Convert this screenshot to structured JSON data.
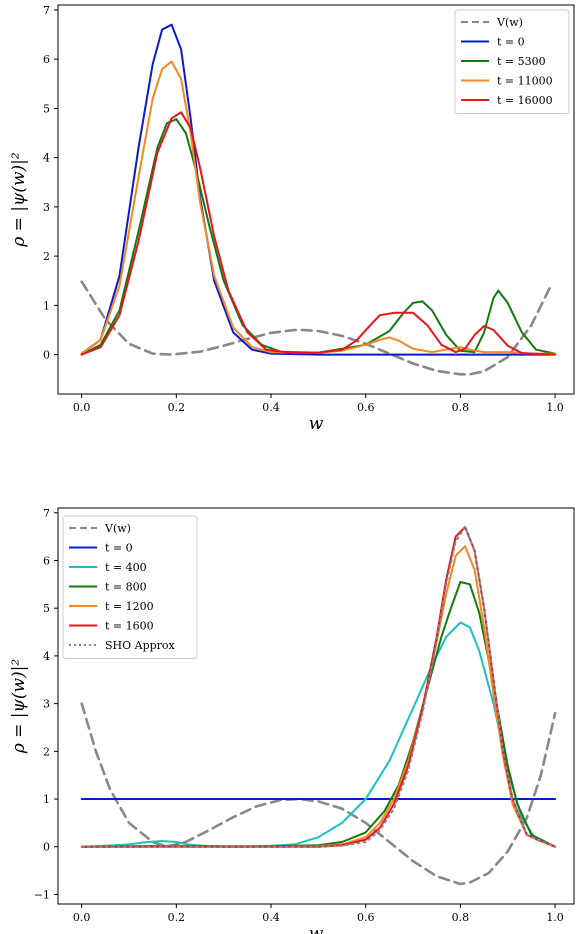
{
  "chart_data": [
    {
      "type": "line",
      "xlabel": "w",
      "ylabel": "ρ = |ψ(w)|²",
      "xlim": [
        -0.05,
        1.04
      ],
      "ylim": [
        -0.8,
        7.1
      ],
      "xticks": [
        "0.0",
        "0.2",
        "0.4",
        "0.6",
        "0.8",
        "1.0"
      ],
      "yticks": [
        "0",
        "1",
        "2",
        "3",
        "4",
        "5",
        "6",
        "7"
      ],
      "legend_position": "top-right",
      "series": [
        {
          "name": "V(w)",
          "style": "dashed",
          "color": "#888888",
          "x": [
            0.0,
            0.05,
            0.1,
            0.15,
            0.19,
            0.25,
            0.3,
            0.35,
            0.4,
            0.45,
            0.47,
            0.5,
            0.55,
            0.6,
            0.65,
            0.7,
            0.75,
            0.8,
            0.82,
            0.85,
            0.9,
            0.95,
            0.99
          ],
          "y": [
            1.48,
            0.72,
            0.22,
            0.02,
            0.0,
            0.06,
            0.18,
            0.32,
            0.44,
            0.5,
            0.5,
            0.48,
            0.38,
            0.22,
            0.02,
            -0.18,
            -0.33,
            -0.4,
            -0.4,
            -0.34,
            -0.05,
            0.6,
            1.38
          ]
        },
        {
          "name": "t = 0",
          "color": "#0a18d8",
          "x": [
            0.0,
            0.04,
            0.08,
            0.12,
            0.15,
            0.17,
            0.19,
            0.21,
            0.23,
            0.25,
            0.28,
            0.32,
            0.36,
            0.4,
            0.5,
            0.7,
            1.0
          ],
          "y": [
            0.02,
            0.3,
            1.6,
            4.2,
            5.9,
            6.6,
            6.7,
            6.2,
            4.8,
            3.2,
            1.5,
            0.45,
            0.1,
            0.02,
            0.0,
            0.0,
            0.0
          ]
        },
        {
          "name": "t = 5300",
          "color": "#117a11",
          "x": [
            0.0,
            0.04,
            0.08,
            0.12,
            0.16,
            0.18,
            0.2,
            0.22,
            0.24,
            0.27,
            0.3,
            0.34,
            0.38,
            0.42,
            0.5,
            0.6,
            0.65,
            0.68,
            0.7,
            0.72,
            0.74,
            0.77,
            0.8,
            0.83,
            0.85,
            0.87,
            0.88,
            0.9,
            0.93,
            0.96,
            1.0
          ],
          "y": [
            0.0,
            0.2,
            0.9,
            2.5,
            4.2,
            4.7,
            4.78,
            4.5,
            3.8,
            2.6,
            1.5,
            0.6,
            0.2,
            0.06,
            0.04,
            0.2,
            0.48,
            0.85,
            1.05,
            1.08,
            0.9,
            0.4,
            0.08,
            0.05,
            0.45,
            1.15,
            1.3,
            1.05,
            0.45,
            0.1,
            0.02
          ]
        },
        {
          "name": "t = 11000",
          "color": "#f5881f",
          "x": [
            0.0,
            0.04,
            0.08,
            0.12,
            0.15,
            0.17,
            0.19,
            0.21,
            0.23,
            0.25,
            0.28,
            0.32,
            0.36,
            0.4,
            0.45,
            0.5,
            0.55,
            0.6,
            0.63,
            0.65,
            0.67,
            0.7,
            0.74,
            0.78,
            0.8,
            0.82,
            0.85,
            0.9,
            0.95,
            1.0
          ],
          "y": [
            0.02,
            0.3,
            1.4,
            3.6,
            5.2,
            5.8,
            5.95,
            5.6,
            4.5,
            3.1,
            1.6,
            0.55,
            0.15,
            0.05,
            0.04,
            0.04,
            0.08,
            0.2,
            0.3,
            0.35,
            0.28,
            0.12,
            0.05,
            0.12,
            0.15,
            0.1,
            0.05,
            0.05,
            0.02,
            0.02
          ]
        },
        {
          "name": "t = 16000",
          "color": "#e8151b",
          "x": [
            0.0,
            0.04,
            0.08,
            0.12,
            0.16,
            0.19,
            0.21,
            0.23,
            0.25,
            0.28,
            0.31,
            0.35,
            0.39,
            0.44,
            0.5,
            0.55,
            0.58,
            0.61,
            0.63,
            0.66,
            0.68,
            0.7,
            0.73,
            0.76,
            0.79,
            0.81,
            0.83,
            0.85,
            0.87,
            0.9,
            0.93,
            1.0
          ],
          "y": [
            0.0,
            0.15,
            0.8,
            2.3,
            4.1,
            4.8,
            4.92,
            4.6,
            3.8,
            2.4,
            1.3,
            0.45,
            0.1,
            0.04,
            0.04,
            0.1,
            0.28,
            0.6,
            0.8,
            0.85,
            0.85,
            0.85,
            0.6,
            0.2,
            0.05,
            0.12,
            0.4,
            0.58,
            0.5,
            0.18,
            0.03,
            0.0
          ]
        }
      ]
    },
    {
      "type": "line",
      "xlabel": "w",
      "ylabel": "ρ = |ψ(w)|²",
      "xlim": [
        -0.05,
        1.04
      ],
      "ylim": [
        -1.2,
        7.1
      ],
      "xticks": [
        "0.0",
        "0.2",
        "0.4",
        "0.6",
        "0.8",
        "1.0"
      ],
      "yticks": [
        "−1",
        "0",
        "1",
        "2",
        "3",
        "4",
        "5",
        "6",
        "7"
      ],
      "legend_position": "top-left",
      "series": [
        {
          "name": "V(w)",
          "style": "dashed",
          "color": "#888888",
          "x": [
            0.0,
            0.03,
            0.06,
            0.1,
            0.15,
            0.18,
            0.22,
            0.27,
            0.32,
            0.37,
            0.42,
            0.46,
            0.5,
            0.55,
            0.6,
            0.65,
            0.7,
            0.75,
            0.8,
            0.82,
            0.86,
            0.9,
            0.94,
            0.97,
            1.0
          ],
          "y": [
            3.0,
            2.0,
            1.2,
            0.5,
            0.1,
            0.0,
            0.1,
            0.35,
            0.62,
            0.85,
            0.98,
            1.0,
            0.95,
            0.8,
            0.5,
            0.1,
            -0.3,
            -0.62,
            -0.78,
            -0.75,
            -0.55,
            -0.1,
            0.6,
            1.5,
            2.8
          ]
        },
        {
          "name": "t = 0",
          "color": "#0a18d8",
          "x": [
            0.0,
            1.0
          ],
          "y": [
            1.0,
            1.0
          ]
        },
        {
          "name": "t = 400",
          "color": "#1ec0c4",
          "x": [
            0.0,
            0.05,
            0.1,
            0.14,
            0.17,
            0.2,
            0.23,
            0.27,
            0.33,
            0.4,
            0.45,
            0.5,
            0.55,
            0.6,
            0.65,
            0.7,
            0.74,
            0.77,
            0.8,
            0.82,
            0.84,
            0.87,
            0.9,
            0.93,
            0.96,
            1.0
          ],
          "y": [
            0.0,
            0.02,
            0.05,
            0.1,
            0.12,
            0.1,
            0.04,
            0.01,
            0.0,
            0.02,
            0.05,
            0.2,
            0.5,
            1.0,
            1.8,
            2.9,
            3.8,
            4.4,
            4.7,
            4.6,
            4.1,
            3.0,
            1.6,
            0.6,
            0.15,
            0.0
          ]
        },
        {
          "name": "t = 800",
          "color": "#117a11",
          "x": [
            0.0,
            0.1,
            0.2,
            0.3,
            0.4,
            0.5,
            0.55,
            0.6,
            0.64,
            0.67,
            0.7,
            0.73,
            0.76,
            0.78,
            0.8,
            0.82,
            0.84,
            0.86,
            0.88,
            0.9,
            0.92,
            0.95,
            1.0
          ],
          "y": [
            0.0,
            0.01,
            0.02,
            0.01,
            0.01,
            0.03,
            0.1,
            0.3,
            0.75,
            1.3,
            2.2,
            3.3,
            4.4,
            5.0,
            5.55,
            5.5,
            4.9,
            3.9,
            2.8,
            1.7,
            0.9,
            0.25,
            0.0
          ]
        },
        {
          "name": "t = 1200",
          "color": "#f5881f",
          "x": [
            0.0,
            0.1,
            0.2,
            0.3,
            0.4,
            0.5,
            0.55,
            0.6,
            0.63,
            0.66,
            0.69,
            0.72,
            0.75,
            0.77,
            0.79,
            0.81,
            0.83,
            0.85,
            0.87,
            0.89,
            0.91,
            0.94,
            1.0
          ],
          "y": [
            0.0,
            0.0,
            0.01,
            0.0,
            0.0,
            0.01,
            0.05,
            0.2,
            0.5,
            1.0,
            1.8,
            2.9,
            4.3,
            5.3,
            6.1,
            6.3,
            5.8,
            4.6,
            3.2,
            1.9,
            0.9,
            0.25,
            0.0
          ]
        },
        {
          "name": "t = 1600",
          "color": "#e8151b",
          "x": [
            0.0,
            0.1,
            0.2,
            0.3,
            0.4,
            0.5,
            0.55,
            0.6,
            0.63,
            0.66,
            0.69,
            0.72,
            0.75,
            0.77,
            0.79,
            0.81,
            0.83,
            0.85,
            0.87,
            0.89,
            0.91,
            0.94,
            1.0
          ],
          "y": [
            0.0,
            0.0,
            0.0,
            0.0,
            0.0,
            0.0,
            0.03,
            0.15,
            0.4,
            0.9,
            1.7,
            2.9,
            4.4,
            5.6,
            6.5,
            6.7,
            6.2,
            5.0,
            3.5,
            2.0,
            1.0,
            0.25,
            0.0
          ]
        },
        {
          "name": "SHO Approx",
          "style": "dotted",
          "color": "#888888",
          "x": [
            0.0,
            0.2,
            0.4,
            0.5,
            0.55,
            0.6,
            0.63,
            0.66,
            0.69,
            0.72,
            0.75,
            0.77,
            0.79,
            0.81,
            0.83,
            0.85,
            0.87,
            0.89,
            0.91,
            0.94,
            1.0
          ],
          "y": [
            0.0,
            0.0,
            0.0,
            0.0,
            0.02,
            0.1,
            0.35,
            0.8,
            1.6,
            2.8,
            4.3,
            5.5,
            6.4,
            6.7,
            6.2,
            5.0,
            3.5,
            2.0,
            1.0,
            0.25,
            0.0
          ]
        }
      ]
    }
  ]
}
